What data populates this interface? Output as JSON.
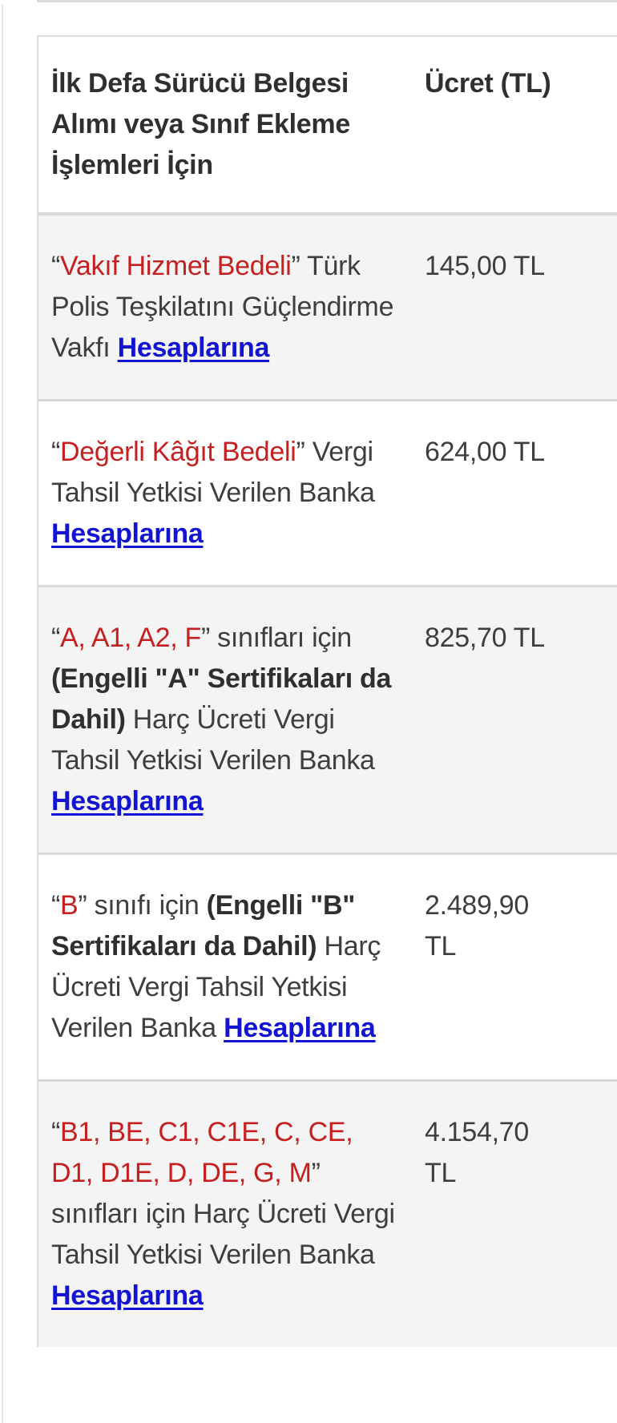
{
  "colors": {
    "red": "#c51f1f",
    "link_blue": "#1313d3",
    "body_text": "#3e3e3e",
    "header_text": "#2f2f2f",
    "row_divider": "#d9d9d9",
    "table_edge": "#dcdcdc",
    "shaded_row_bg": "#f4f4f4"
  },
  "table": {
    "header": {
      "col1": "İlk Defa Sürücü Belgesi Alımı veya Sınıf Ekleme İşlemleri İçin",
      "col2": "Ücret (TL)"
    },
    "rows": [
      {
        "shaded": true,
        "segments": [
          {
            "text": "“",
            "style": "plain"
          },
          {
            "text": "Vakıf Hizmet Bedeli",
            "style": "red"
          },
          {
            "text": "” Türk Polis Teşkilatını Güçlendirme Vakfı ",
            "style": "plain"
          },
          {
            "text": "Hesaplarına",
            "style": "link"
          }
        ],
        "fee": "145,00 TL"
      },
      {
        "shaded": false,
        "segments": [
          {
            "text": "“",
            "style": "plain"
          },
          {
            "text": "Değerli Kâğıt Bedeli",
            "style": "red"
          },
          {
            "text": "” Vergi Tahsil Yetkisi Verilen Banka ",
            "style": "plain"
          },
          {
            "text": "Hesaplarına",
            "style": "link"
          }
        ],
        "fee": "624,00 TL"
      },
      {
        "shaded": true,
        "segments": [
          {
            "text": "“",
            "style": "plain"
          },
          {
            "text": "A, A1, A2, F",
            "style": "red"
          },
          {
            "text": "” sınıfları için ",
            "style": "plain"
          },
          {
            "text": "(Engelli \"A\" Sertifikaları da Dahil)",
            "style": "bold"
          },
          {
            "text": " Harç Ücreti Vergi Tahsil Yetkisi Verilen Banka ",
            "style": "plain"
          },
          {
            "text": "Hesaplarına",
            "style": "link"
          }
        ],
        "fee": "825,70 TL"
      },
      {
        "shaded": false,
        "segments": [
          {
            "text": "“",
            "style": "plain"
          },
          {
            "text": "B",
            "style": "red"
          },
          {
            "text": "” sınıfı için ",
            "style": "plain"
          },
          {
            "text": "(Engelli \"B\" Sertifikaları da Dahil)",
            "style": "bold"
          },
          {
            "text": " Harç Ücreti Vergi Tahsil Yetkisi Verilen Banka ",
            "style": "plain"
          },
          {
            "text": "Hesaplarına",
            "style": "link"
          }
        ],
        "fee": "2.489,90 TL"
      },
      {
        "shaded": true,
        "segments": [
          {
            "text": "“",
            "style": "plain"
          },
          {
            "text": "B1, BE, C1, C1E, C, CE, D1, D1E, D, DE, G, M",
            "style": "red"
          },
          {
            "text": "” sınıfları için Harç Ücreti Vergi Tahsil Yetkisi Verilen Banka ",
            "style": "plain"
          },
          {
            "text": "Hesaplarına",
            "style": "link"
          }
        ],
        "fee": "4.154,70 TL"
      }
    ]
  }
}
